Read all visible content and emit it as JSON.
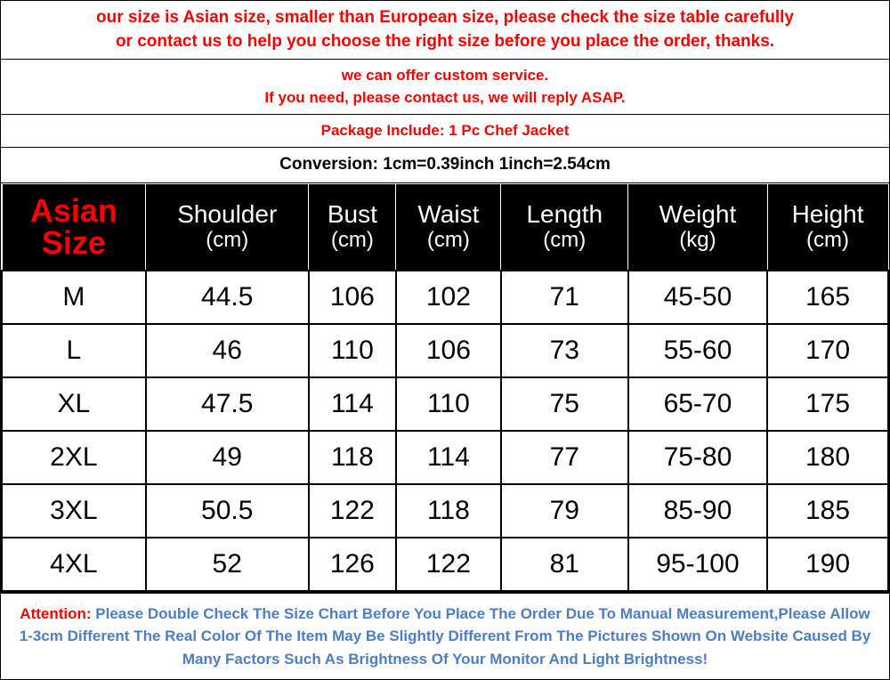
{
  "notices": {
    "line1a": "our size is Asian size, smaller than European size, please check the size table carefully",
    "line1b": "or contact us to help you choose the right size before you place the order, thanks.",
    "line2a": "we can offer custom service.",
    "line2b": "If you need, please contact us, we will reply ASAP.",
    "line3": "Package Include: 1 Pc Chef Jacket",
    "line4": "Conversion: 1cm=0.39inch  1inch=2.54cm"
  },
  "headers": {
    "asian_l1": "Asian",
    "asian_l2": "Size",
    "shoulder_l1": "Shoulder",
    "shoulder_l2": "(cm)",
    "bust_l1": "Bust",
    "bust_l2": "(cm)",
    "waist_l1": "Waist",
    "waist_l2": "(cm)",
    "length_l1": "Length",
    "length_l2": "(cm)",
    "weight_l1": "Weight",
    "weight_l2": "(kg)",
    "height_l1": "Height",
    "height_l2": "(cm)"
  },
  "rows": [
    {
      "size": "M",
      "shoulder": "44.5",
      "bust": "106",
      "waist": "102",
      "length": "71",
      "weight": "45-50",
      "height": "165"
    },
    {
      "size": "L",
      "shoulder": "46",
      "bust": "110",
      "waist": "106",
      "length": "73",
      "weight": "55-60",
      "height": "170"
    },
    {
      "size": "XL",
      "shoulder": "47.5",
      "bust": "114",
      "waist": "110",
      "length": "75",
      "weight": "65-70",
      "height": "175"
    },
    {
      "size": "2XL",
      "shoulder": "49",
      "bust": "118",
      "waist": "114",
      "length": "77",
      "weight": "75-80",
      "height": "180"
    },
    {
      "size": "3XL",
      "shoulder": "50.5",
      "bust": "122",
      "waist": "118",
      "length": "79",
      "weight": "85-90",
      "height": "185"
    },
    {
      "size": "4XL",
      "shoulder": "52",
      "bust": "126",
      "waist": "122",
      "length": "81",
      "weight": "95-100",
      "height": "190"
    }
  ],
  "footer": {
    "attention": "Attention:",
    "text": " Please Double Check The Size Chart Before You Place The Order Due To Manual Measurement,Please Allow 1-3cm Different The Real Color Of The Item May Be Slightly Different From The Pictures Shown On Website Caused By Many Factors Such As Brightness Of Your Monitor And Light Brightness!"
  },
  "colors": {
    "red": "#ff0000",
    "blue": "#4a7fc8",
    "black": "#000000",
    "white": "#ffffff"
  }
}
